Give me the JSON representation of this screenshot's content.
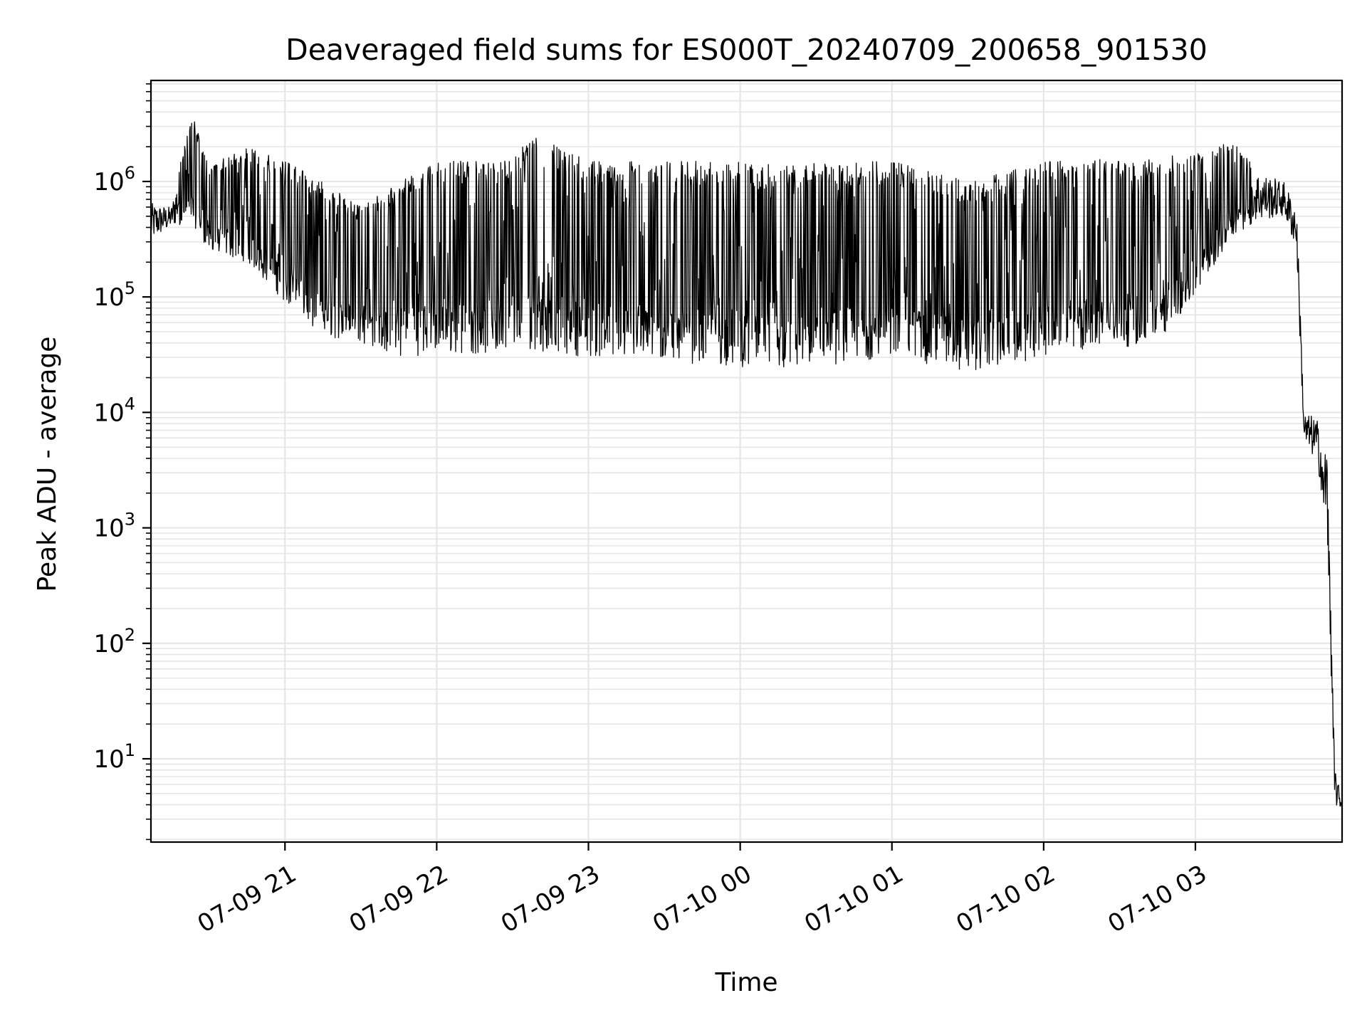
{
  "chart_data": {
    "type": "line",
    "title": "Deaveraged field sums for ES000T_20240709_200658_901530",
    "xlabel": "Time",
    "ylabel": "Peak ADU - average",
    "yscale": "log",
    "grid": true,
    "line_color": "#000000",
    "grid_color": "#e6e6e6",
    "xlim": [
      "2024-07-09 20:07",
      "2024-07-10 03:58"
    ],
    "ylim": [
      1.9,
      7500000
    ],
    "x_ticks": [
      {
        "time": "2024-07-09 21:00",
        "label": "07-09 21"
      },
      {
        "time": "2024-07-09 22:00",
        "label": "07-09 22"
      },
      {
        "time": "2024-07-09 23:00",
        "label": "07-09 23"
      },
      {
        "time": "2024-07-10 00:00",
        "label": "07-10 00"
      },
      {
        "time": "2024-07-10 01:00",
        "label": "07-10 01"
      },
      {
        "time": "2024-07-10 02:00",
        "label": "07-10 02"
      },
      {
        "time": "2024-07-10 03:00",
        "label": "07-10 03"
      }
    ],
    "y_ticks": [
      {
        "value": 10,
        "base": "10",
        "exp": "1"
      },
      {
        "value": 100,
        "base": "10",
        "exp": "2"
      },
      {
        "value": 1000,
        "base": "10",
        "exp": "3"
      },
      {
        "value": 10000,
        "base": "10",
        "exp": "4"
      },
      {
        "value": 100000,
        "base": "10",
        "exp": "5"
      },
      {
        "value": 1000000,
        "base": "10",
        "exp": "6"
      }
    ],
    "series": [
      {
        "envelope": [
          {
            "time": "2024-07-09 20:07",
            "low": 300000,
            "high": 650000
          },
          {
            "time": "2024-07-09 20:15",
            "low": 400000,
            "high": 600000
          },
          {
            "time": "2024-07-09 20:23",
            "low": 450000,
            "high": 4000000
          },
          {
            "time": "2024-07-09 20:30",
            "low": 250000,
            "high": 1400000
          },
          {
            "time": "2024-07-09 20:45",
            "low": 200000,
            "high": 2000000
          },
          {
            "time": "2024-07-09 21:00",
            "low": 90000,
            "high": 1500000
          },
          {
            "time": "2024-07-09 21:15",
            "low": 45000,
            "high": 1000000
          },
          {
            "time": "2024-07-09 21:30",
            "low": 40000,
            "high": 600000
          },
          {
            "time": "2024-07-09 21:45",
            "low": 30000,
            "high": 1000000
          },
          {
            "time": "2024-07-09 22:00",
            "low": 32000,
            "high": 1500000
          },
          {
            "time": "2024-07-09 22:30",
            "low": 32000,
            "high": 1500000
          },
          {
            "time": "2024-07-09 22:37",
            "low": 35000,
            "high": 2600000
          },
          {
            "time": "2024-07-09 23:00",
            "low": 30000,
            "high": 1500000
          },
          {
            "time": "2024-07-10 00:00",
            "low": 25000,
            "high": 1500000
          },
          {
            "time": "2024-07-10 00:08",
            "low": 21000,
            "high": 1400000
          },
          {
            "time": "2024-07-10 01:00",
            "low": 30000,
            "high": 1500000
          },
          {
            "time": "2024-07-10 01:30",
            "low": 22000,
            "high": 1000000
          },
          {
            "time": "2024-07-10 02:00",
            "low": 30000,
            "high": 1500000
          },
          {
            "time": "2024-07-10 02:45",
            "low": 40000,
            "high": 1600000
          },
          {
            "time": "2024-07-10 03:00",
            "low": 100000,
            "high": 1800000
          },
          {
            "time": "2024-07-10 03:15",
            "low": 350000,
            "high": 2200000
          },
          {
            "time": "2024-07-10 03:25",
            "low": 450000,
            "high": 1200000
          },
          {
            "time": "2024-07-10 03:35",
            "low": 500000,
            "high": 1000000
          },
          {
            "time": "2024-07-10 03:40",
            "low": 250000,
            "high": 600000
          },
          {
            "time": "2024-07-10 03:43",
            "low": 5000,
            "high": 10000
          },
          {
            "time": "2024-07-10 03:48",
            "low": 3800,
            "high": 9000
          },
          {
            "time": "2024-07-10 03:52",
            "low": 1000,
            "high": 4000
          },
          {
            "time": "2024-07-10 03:55",
            "low": 3.8,
            "high": 10
          },
          {
            "time": "2024-07-10 03:58",
            "low": 3.8,
            "high": 3.8
          }
        ]
      }
    ]
  }
}
